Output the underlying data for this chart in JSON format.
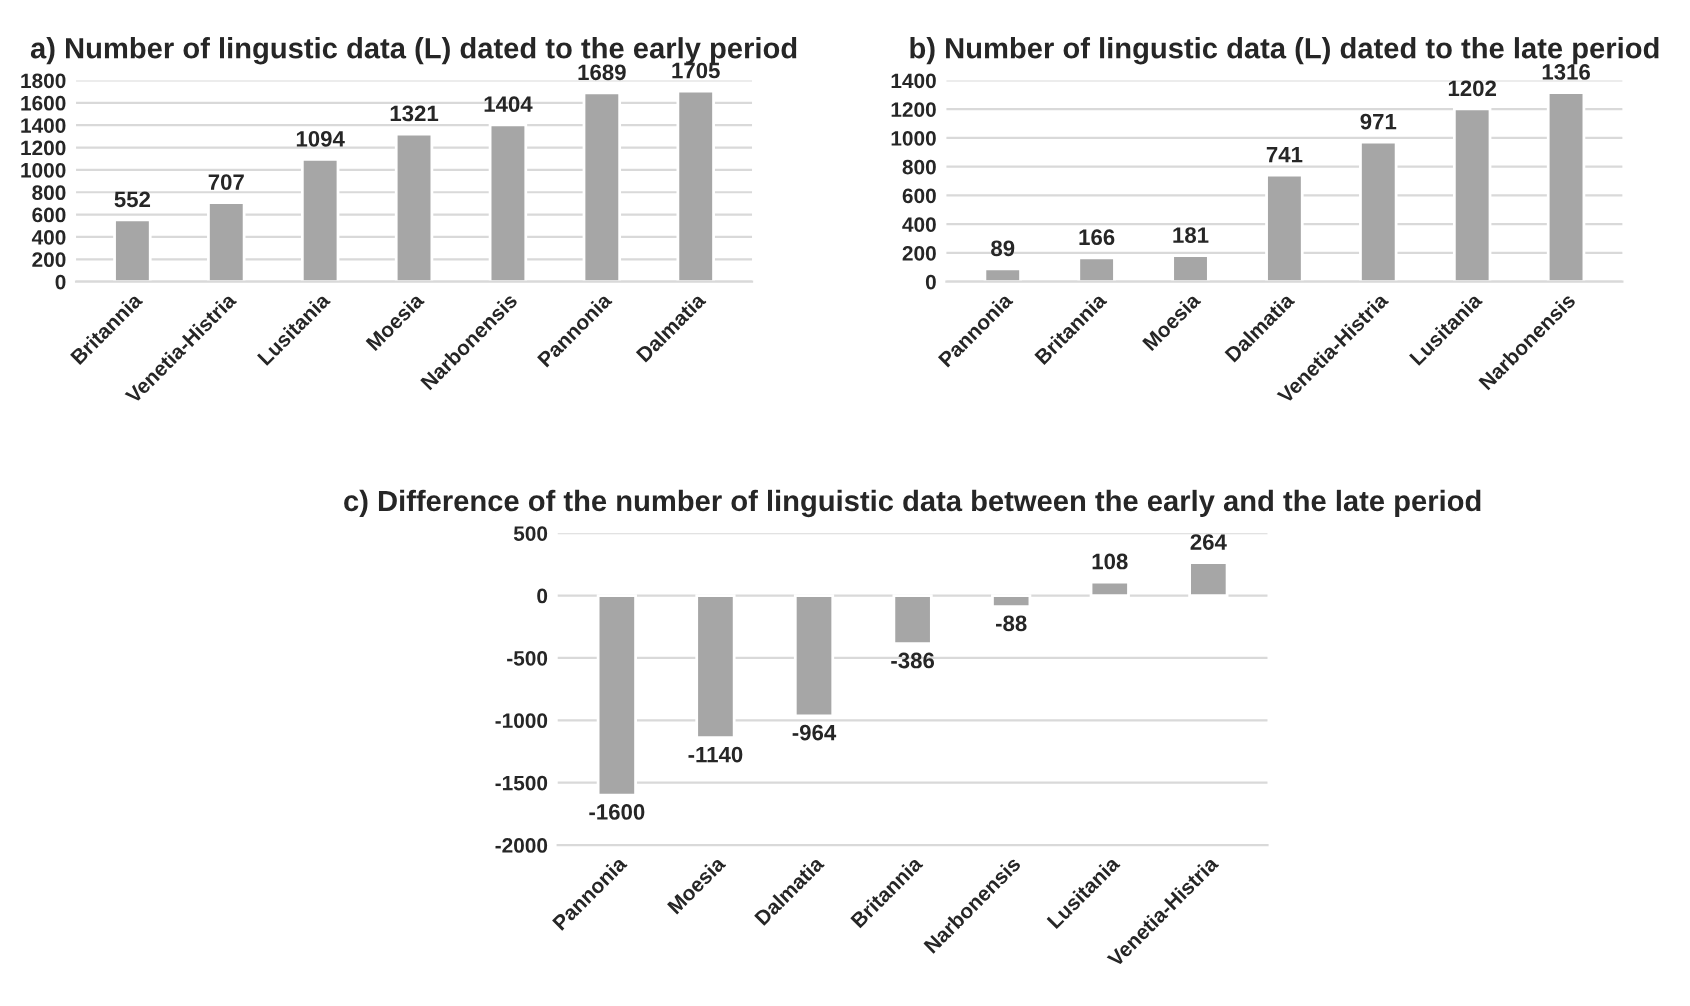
{
  "chart_data": [
    {
      "type": "bar",
      "title": "a) Number of lingustic data (L) dated to the early period",
      "categories": [
        "Britannia",
        "Venetia-Histria",
        "Lusitania",
        "Moesia",
        "Narbonensis",
        "Pannonia",
        "Dalmatia"
      ],
      "values": [
        552,
        707,
        1094,
        1321,
        1404,
        1689,
        1705
      ],
      "color": "#a6a6a6",
      "ylim": [
        0,
        1800
      ],
      "yticks": [
        0,
        200,
        400,
        600,
        800,
        1000,
        1200,
        1400,
        1600,
        1800
      ],
      "grid": "y",
      "data_labels": true
    },
    {
      "type": "bar",
      "title": "b) Number of lingustic data (L) dated to the late period",
      "categories": [
        "Pannonia",
        "Britannia",
        "Moesia",
        "Dalmatia",
        "Venetia-Histria",
        "Lusitania",
        "Narbonensis"
      ],
      "values": [
        89,
        166,
        181,
        741,
        971,
        1202,
        1316
      ],
      "color": "#a6a6a6",
      "ylim": [
        0,
        1400
      ],
      "yticks": [
        0,
        200,
        400,
        600,
        800,
        1000,
        1200,
        1400
      ],
      "grid": "y",
      "data_labels": true
    },
    {
      "type": "bar",
      "title": "c) Difference of the number of linguistic data between the early and the late period",
      "categories": [
        "Pannonia",
        "Moesia",
        "Dalmatia",
        "Britannia",
        "Narbonensis",
        "Lusitania",
        "Venetia-Histria"
      ],
      "values": [
        -1600,
        -1140,
        -964,
        -386,
        -88,
        108,
        264
      ],
      "color": "#a6a6a6",
      "ylim": [
        -2000,
        500
      ],
      "yticks": [
        -2000,
        -1500,
        -1000,
        -500,
        0,
        500
      ],
      "grid": "y",
      "data_labels": true
    }
  ]
}
